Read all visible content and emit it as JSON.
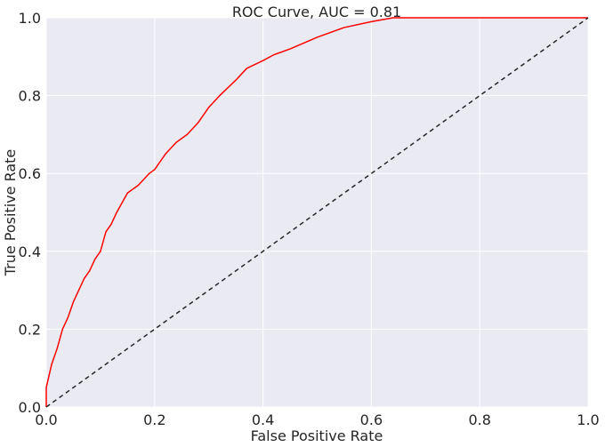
{
  "chart_data": {
    "type": "line",
    "title": "ROC Curve, AUC = 0.81",
    "xlabel": "False Positive Rate",
    "ylabel": "True Positive Rate",
    "xlim": [
      0.0,
      1.0
    ],
    "ylim": [
      0.0,
      1.0
    ],
    "xticks": [
      "0.0",
      "0.2",
      "0.4",
      "0.6",
      "0.8",
      "1.0"
    ],
    "yticks": [
      "0.0",
      "0.2",
      "0.4",
      "0.6",
      "0.8",
      "1.0"
    ],
    "grid": true,
    "legend": "none",
    "colors": {
      "background": "#eaeaf2",
      "grid": "#ffffff",
      "roc": "#ff0000",
      "chance": "#262626"
    },
    "series": [
      {
        "style": "solid",
        "x": [
          0.0,
          0.0,
          0.005,
          0.01,
          0.02,
          0.03,
          0.04,
          0.05,
          0.06,
          0.07,
          0.08,
          0.09,
          0.1,
          0.11,
          0.12,
          0.13,
          0.15,
          0.17,
          0.19,
          0.2,
          0.22,
          0.24,
          0.26,
          0.28,
          0.3,
          0.32,
          0.35,
          0.37,
          0.4,
          0.42,
          0.45,
          0.5,
          0.55,
          0.6,
          0.64,
          0.7,
          0.8,
          0.9,
          1.0
        ],
        "y": [
          0.0,
          0.05,
          0.08,
          0.11,
          0.15,
          0.2,
          0.23,
          0.27,
          0.3,
          0.33,
          0.35,
          0.38,
          0.4,
          0.45,
          0.47,
          0.5,
          0.55,
          0.57,
          0.6,
          0.61,
          0.65,
          0.68,
          0.7,
          0.73,
          0.77,
          0.8,
          0.84,
          0.87,
          0.89,
          0.905,
          0.92,
          0.95,
          0.975,
          0.99,
          1.0,
          1.0,
          1.0,
          1.0,
          1.0
        ]
      },
      {
        "style": "dashed",
        "x": [
          0.0,
          1.0
        ],
        "y": [
          0.0,
          1.0
        ]
      }
    ]
  }
}
